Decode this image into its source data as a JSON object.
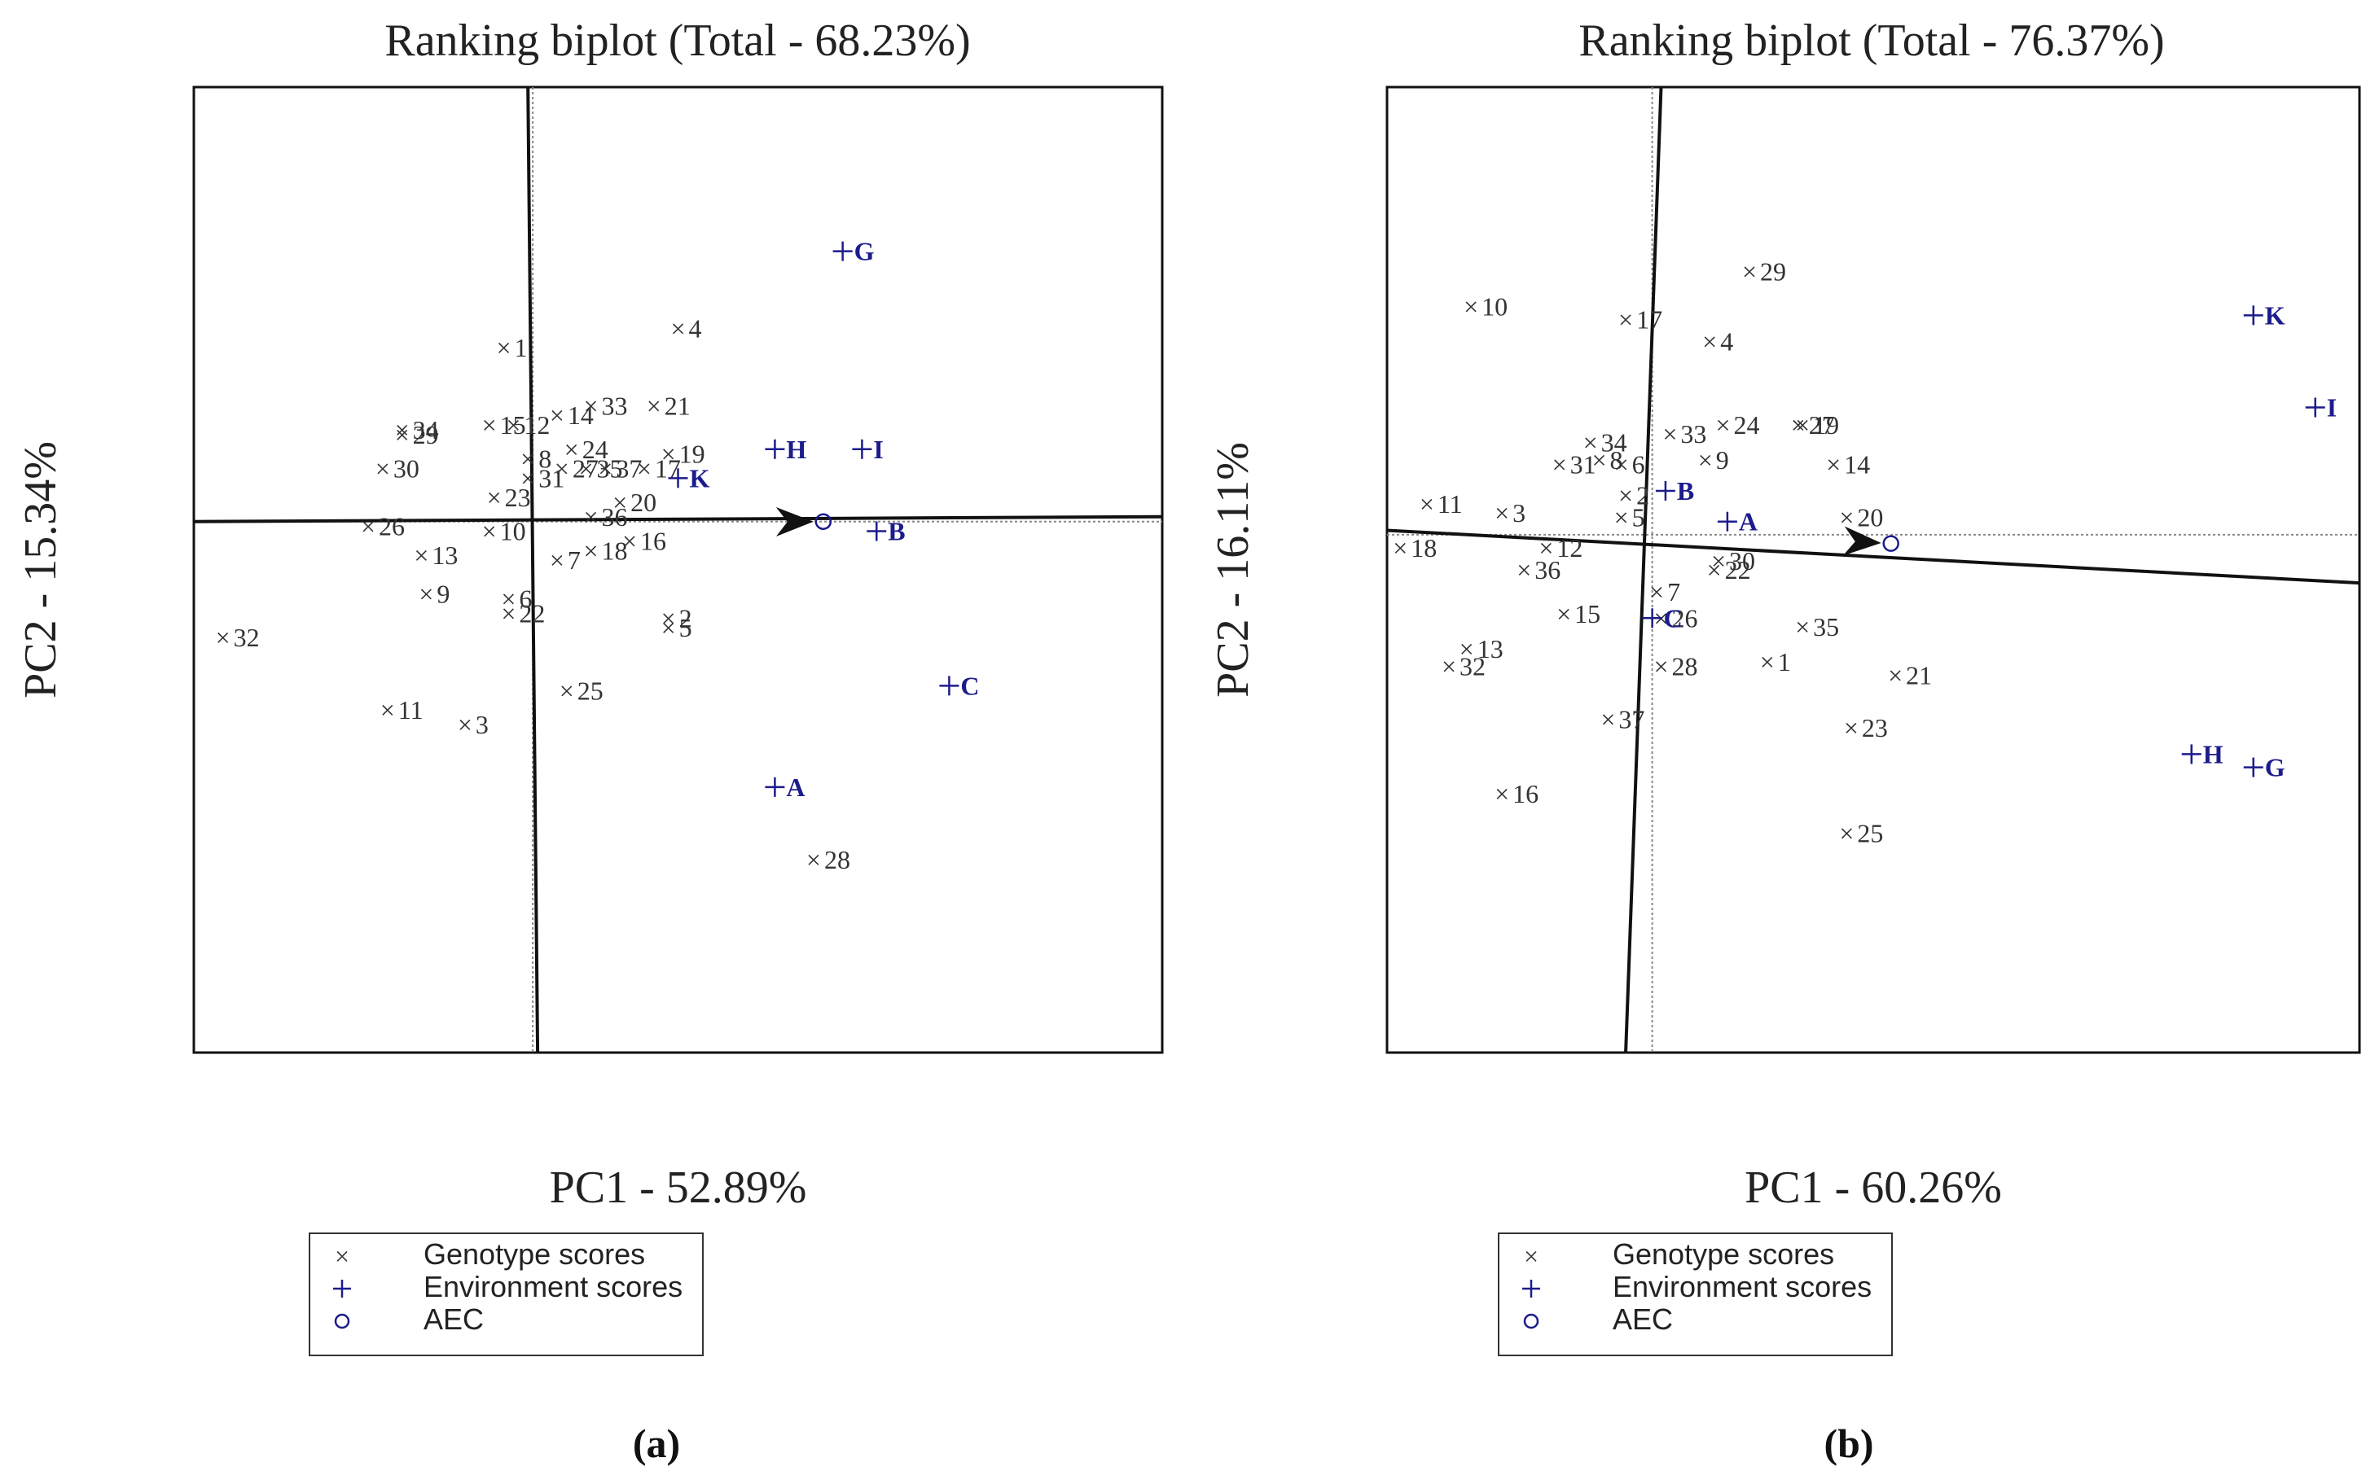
{
  "chart_data": [
    {
      "type": "scatter",
      "panel_label": "(a)",
      "title": "Ranking biplot (Total - 68.23%)",
      "xlabel": "PC1 - 52.89%",
      "ylabel": "PC2 - 15.34%",
      "xlim": [
        -3.5,
        6.5
      ],
      "ylim": [
        -5.5,
        4.5
      ],
      "legend": {
        "position": "below",
        "genotype": "Genotype scores",
        "environment": "Environment scores",
        "aec": "AEC"
      },
      "aec": {
        "x": 3.0,
        "y": 0.0
      },
      "aec_axis": {
        "x1": -3.5,
        "y1": 0.0,
        "x2": 6.5,
        "y2": 0.05
      },
      "aec_ortho": {
        "x1": -0.05,
        "y1": 4.5,
        "x2": 0.05,
        "y2": -5.5
      },
      "ref_lines": {
        "x": 0.0,
        "y": 0.0
      },
      "genotypes": [
        {
          "label": "1",
          "x": -0.3,
          "y": 1.8
        },
        {
          "label": "2",
          "x": 1.4,
          "y": -1.0
        },
        {
          "label": "3",
          "x": -0.7,
          "y": -2.1
        },
        {
          "label": "4",
          "x": 1.5,
          "y": 2.0
        },
        {
          "label": "5",
          "x": 1.4,
          "y": -1.1
        },
        {
          "label": "6",
          "x": -0.25,
          "y": -0.8
        },
        {
          "label": "7",
          "x": 0.25,
          "y": -0.4
        },
        {
          "label": "8",
          "x": -0.05,
          "y": 0.65
        },
        {
          "label": "9",
          "x": -1.1,
          "y": -0.75
        },
        {
          "label": "10",
          "x": -0.45,
          "y": -0.1
        },
        {
          "label": "11",
          "x": -1.5,
          "y": -1.95
        },
        {
          "label": "12",
          "x": -0.2,
          "y": 1.0
        },
        {
          "label": "13",
          "x": -1.15,
          "y": -0.35
        },
        {
          "label": "14",
          "x": 0.25,
          "y": 1.1
        },
        {
          "label": "15",
          "x": -0.45,
          "y": 1.0
        },
        {
          "label": "16",
          "x": 1.0,
          "y": -0.2
        },
        {
          "label": "17",
          "x": 1.15,
          "y": 0.55
        },
        {
          "label": "18",
          "x": 0.6,
          "y": -0.3
        },
        {
          "label": "19",
          "x": 1.4,
          "y": 0.7
        },
        {
          "label": "20",
          "x": 0.9,
          "y": 0.2
        },
        {
          "label": "21",
          "x": 1.25,
          "y": 1.2
        },
        {
          "label": "22",
          "x": -0.25,
          "y": -0.95
        },
        {
          "label": "23",
          "x": -0.4,
          "y": 0.25
        },
        {
          "label": "24",
          "x": 0.4,
          "y": 0.75
        },
        {
          "label": "25",
          "x": 0.35,
          "y": -1.75
        },
        {
          "label": "26",
          "x": -1.7,
          "y": -0.05
        },
        {
          "label": "27",
          "x": 0.3,
          "y": 0.55
        },
        {
          "label": "28",
          "x": 2.9,
          "y": -3.5
        },
        {
          "label": "29",
          "x": -1.35,
          "y": 0.9
        },
        {
          "label": "30",
          "x": -1.55,
          "y": 0.55
        },
        {
          "label": "31",
          "x": -0.05,
          "y": 0.45
        },
        {
          "label": "32",
          "x": -3.2,
          "y": -1.2
        },
        {
          "label": "33",
          "x": 0.6,
          "y": 1.2
        },
        {
          "label": "34",
          "x": -1.35,
          "y": 0.95
        },
        {
          "label": "35",
          "x": 0.55,
          "y": 0.55
        },
        {
          "label": "36",
          "x": 0.6,
          "y": 0.05
        },
        {
          "label": "37",
          "x": 0.75,
          "y": 0.55
        }
      ],
      "environments": [
        {
          "label": "G",
          "x": 3.2,
          "y": 2.8
        },
        {
          "label": "H",
          "x": 2.5,
          "y": 0.75
        },
        {
          "label": "I",
          "x": 3.4,
          "y": 0.75
        },
        {
          "label": "K",
          "x": 1.5,
          "y": 0.45
        },
        {
          "label": "B",
          "x": 3.55,
          "y": -0.1
        },
        {
          "label": "C",
          "x": 4.3,
          "y": -1.7
        },
        {
          "label": "A",
          "x": 2.5,
          "y": -2.75
        }
      ]
    },
    {
      "type": "scatter",
      "panel_label": "(b)",
      "title": "Ranking biplot (Total - 76.37%)",
      "xlabel": "PC1 - 60.26%",
      "ylabel": "PC2 - 16.11%",
      "xlim": [
        -3.0,
        8.0
      ],
      "ylim": [
        -5.8,
        5.2
      ],
      "legend": {
        "position": "below",
        "genotype": "Genotype scores",
        "environment": "Environment scores",
        "aec": "AEC"
      },
      "aec": {
        "x": 2.7,
        "y": 0.0
      },
      "aec_axis": {
        "x1": -3.0,
        "y1": 0.15,
        "x2": 8.0,
        "y2": -0.45
      },
      "aec_ortho": {
        "x1": 0.1,
        "y1": 5.2,
        "x2": -0.3,
        "y2": -5.8
      },
      "ref_lines": {
        "x": 0.0,
        "y": 0.1
      },
      "genotypes": [
        {
          "label": "1",
          "x": 1.3,
          "y": -1.35
        },
        {
          "label": "2",
          "x": -0.3,
          "y": 0.55
        },
        {
          "label": "3",
          "x": -1.7,
          "y": 0.35
        },
        {
          "label": "4",
          "x": 0.65,
          "y": 2.3
        },
        {
          "label": "5",
          "x": -0.35,
          "y": 0.3
        },
        {
          "label": "6",
          "x": -0.35,
          "y": 0.9
        },
        {
          "label": "7",
          "x": 0.05,
          "y": -0.55
        },
        {
          "label": "8",
          "x": -0.6,
          "y": 0.95
        },
        {
          "label": "9",
          "x": 0.6,
          "y": 0.95
        },
        {
          "label": "10",
          "x": -2.05,
          "y": 2.7
        },
        {
          "label": "11",
          "x": -2.55,
          "y": 0.45
        },
        {
          "label": "12",
          "x": -1.2,
          "y": -0.05
        },
        {
          "label": "13",
          "x": -2.1,
          "y": -1.2
        },
        {
          "label": "14",
          "x": 2.05,
          "y": 0.9
        },
        {
          "label": "15",
          "x": -1.0,
          "y": -0.8
        },
        {
          "label": "16",
          "x": -1.7,
          "y": -2.85
        },
        {
          "label": "17",
          "x": -0.3,
          "y": 2.55
        },
        {
          "label": "18",
          "x": -2.85,
          "y": -0.05
        },
        {
          "label": "19",
          "x": 1.7,
          "y": 1.35
        },
        {
          "label": "20",
          "x": 2.2,
          "y": 0.3
        },
        {
          "label": "21",
          "x": 2.75,
          "y": -1.5
        },
        {
          "label": "22",
          "x": 0.7,
          "y": -0.3
        },
        {
          "label": "23",
          "x": 2.25,
          "y": -2.1
        },
        {
          "label": "24",
          "x": 0.8,
          "y": 1.35
        },
        {
          "label": "25",
          "x": 2.2,
          "y": -3.3
        },
        {
          "label": "26",
          "x": 0.1,
          "y": -0.85
        },
        {
          "label": "27",
          "x": 1.65,
          "y": 1.35
        },
        {
          "label": "28",
          "x": 0.1,
          "y": -1.4
        },
        {
          "label": "29",
          "x": 1.1,
          "y": 3.1
        },
        {
          "label": "30",
          "x": 0.75,
          "y": -0.2
        },
        {
          "label": "31",
          "x": -1.05,
          "y": 0.9
        },
        {
          "label": "32",
          "x": -2.3,
          "y": -1.4
        },
        {
          "label": "33",
          "x": 0.2,
          "y": 1.25
        },
        {
          "label": "34",
          "x": -0.7,
          "y": 1.15
        },
        {
          "label": "35",
          "x": 1.7,
          "y": -0.95
        },
        {
          "label": "36",
          "x": -1.45,
          "y": -0.3
        },
        {
          "label": "37",
          "x": -0.5,
          "y": -2.0
        }
      ],
      "environments": [
        {
          "label": "K",
          "x": 6.8,
          "y": 2.6
        },
        {
          "label": "I",
          "x": 7.5,
          "y": 1.55
        },
        {
          "label": "B",
          "x": 0.15,
          "y": 0.6
        },
        {
          "label": "A",
          "x": 0.85,
          "y": 0.25
        },
        {
          "label": "C",
          "x": 0.0,
          "y": -0.85
        },
        {
          "label": "H",
          "x": 6.1,
          "y": -2.4
        },
        {
          "label": "G",
          "x": 6.8,
          "y": -2.55
        }
      ]
    }
  ]
}
